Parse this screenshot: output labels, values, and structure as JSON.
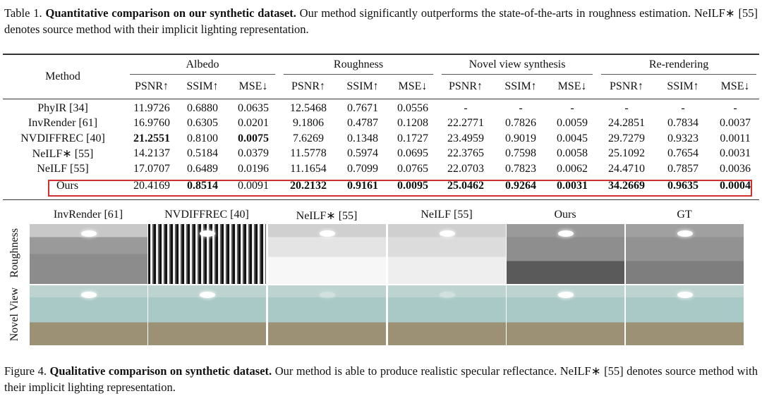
{
  "table_caption": {
    "label": "Table 1.",
    "title": "Quantitative comparison on our synthetic dataset.",
    "text": " Our method significantly outperforms the state-of-the-arts in roughness estimation. NeILF∗ [55] denotes source method with their implicit lighting representation."
  },
  "table": {
    "method_header": "Method",
    "groups": [
      "Albedo",
      "Roughness",
      "Novel view synthesis",
      "Re-rendering"
    ],
    "metrics": [
      "PSNR↑",
      "SSIM↑",
      "MSE↓",
      "PSNR↑",
      "SSIM↑",
      "MSE↓",
      "PSNR↑",
      "SSIM↑",
      "MSE↓",
      "PSNR↑",
      "SSIM↑",
      "MSE↓"
    ],
    "rows": [
      {
        "method": "PhyIR [34]",
        "values": [
          "11.9726",
          "0.6880",
          "0.0635",
          "12.5468",
          "0.7671",
          "0.0556",
          "-",
          "-",
          "-",
          "-",
          "-",
          "-"
        ],
        "bold": []
      },
      {
        "method": "InvRender [61]",
        "values": [
          "16.9760",
          "0.6305",
          "0.0201",
          "9.1806",
          "0.4787",
          "0.1208",
          "22.2771",
          "0.7826",
          "0.0059",
          "24.2851",
          "0.7834",
          "0.0037"
        ],
        "bold": []
      },
      {
        "method": "NVDIFFREC [40]",
        "values": [
          "21.2551",
          "0.8100",
          "0.0075",
          "7.6269",
          "0.1348",
          "0.1727",
          "23.4959",
          "0.9019",
          "0.0045",
          "29.7279",
          "0.9323",
          "0.0011"
        ],
        "bold": [
          0,
          2
        ]
      },
      {
        "method": "NeILF∗ [55]",
        "values": [
          "14.2137",
          "0.5184",
          "0.0379",
          "11.5778",
          "0.5974",
          "0.0695",
          "22.3765",
          "0.7598",
          "0.0058",
          "25.1092",
          "0.7654",
          "0.0031"
        ],
        "bold": []
      },
      {
        "method": "NeILF [55]",
        "values": [
          "17.0707",
          "0.6489",
          "0.0196",
          "11.1654",
          "0.7099",
          "0.0765",
          "22.0703",
          "0.7823",
          "0.0062",
          "24.4710",
          "0.7857",
          "0.0036"
        ],
        "bold": []
      },
      {
        "method": "Ours",
        "values": [
          "20.4169",
          "0.8514",
          "0.0091",
          "20.2132",
          "0.9161",
          "0.0095",
          "25.0462",
          "0.9264",
          "0.0031",
          "34.2669",
          "0.9635",
          "0.0004"
        ],
        "bold": [
          1,
          3,
          4,
          5,
          6,
          7,
          8,
          9,
          10,
          11
        ],
        "highlight_color": "#d32f2f"
      }
    ]
  },
  "figure": {
    "columns": [
      "InvRender [61]",
      "NVDIFFREC [40]",
      "NeILF∗ [55]",
      "NeILF [55]",
      "Ours",
      "GT"
    ],
    "rows": [
      "Roughness",
      "Novel View"
    ]
  },
  "figure_caption": {
    "label": "Figure 4.",
    "title": "Qualitative comparison on synthetic dataset.",
    "text": " Our method is able to produce realistic specular reflectance. NeILF∗ [55] denotes source method with their implicit lighting representation."
  }
}
